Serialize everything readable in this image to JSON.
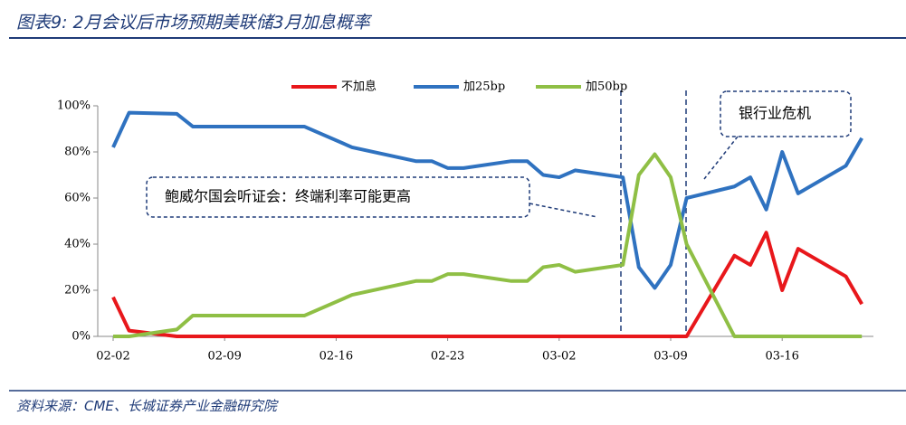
{
  "chart_data": {
    "type": "line",
    "title": "图表9: 2月会议后市场预期美联储3月加息概率",
    "source": "资料来源：CME、长城证券产业金融研究院",
    "annotations": [
      "鲍威尔国会听证会：终端利率可能更高",
      "银行业危机"
    ],
    "x": [
      "02-02",
      "02-03",
      "02-06",
      "02-07",
      "02-14",
      "02-17",
      "02-21",
      "02-22",
      "02-23",
      "02-24",
      "02-27",
      "02-28",
      "03-01",
      "03-02",
      "03-03",
      "03-06",
      "03-07",
      "03-08",
      "03-09",
      "03-10",
      "03-13",
      "03-14",
      "03-15",
      "03-16",
      "03-17",
      "03-20",
      "03-21"
    ],
    "series": [
      {
        "name": "不加息",
        "color": "#e8171b",
        "values": [
          17,
          2.5,
          0,
          0,
          0,
          0,
          0,
          0,
          0,
          0,
          0,
          0,
          0,
          0,
          0,
          0,
          0,
          0,
          0,
          0,
          35,
          31,
          45,
          20,
          38,
          26,
          14
        ]
      },
      {
        "name": "加25bp",
        "color": "#2f72c0",
        "values": [
          82,
          97,
          96.5,
          91,
          91,
          82,
          76,
          76,
          73,
          73,
          76,
          76,
          70,
          69,
          72,
          69,
          30,
          21,
          31,
          60,
          65,
          69,
          55,
          80,
          62,
          74,
          86
        ]
      },
      {
        "name": "加50bp",
        "color": "#8fbf45",
        "values": [
          0,
          0,
          3,
          9,
          9,
          18,
          24,
          24,
          27,
          27,
          24,
          24,
          30,
          31,
          28,
          31,
          70,
          79,
          69,
          40,
          0,
          0,
          0,
          0,
          0,
          0,
          0
        ]
      }
    ],
    "xticks": [
      "02-02",
      "02-09",
      "02-16",
      "02-23",
      "03-02",
      "03-09",
      "03-16"
    ],
    "ylim": [
      0,
      100
    ],
    "yticks": [
      {
        "value": 0,
        "label": "0%"
      },
      {
        "value": 20,
        "label": "20%"
      },
      {
        "value": 40,
        "label": "40%"
      },
      {
        "value": 60,
        "label": "60%"
      },
      {
        "value": 80,
        "label": "80%"
      },
      {
        "value": 100,
        "label": "100%"
      }
    ],
    "legend": "top"
  }
}
